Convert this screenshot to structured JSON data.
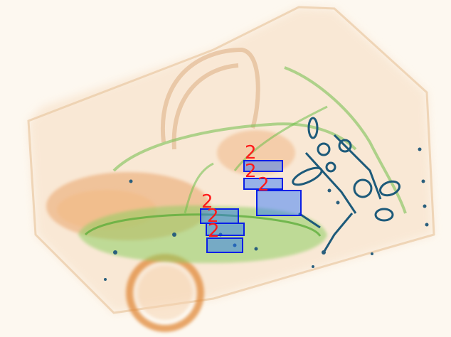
{
  "colors": {
    "background": "#fdf8f0",
    "box_stroke": "#0a1fe6",
    "box_fill": "#1f6fff",
    "label": "#ff1a1a",
    "organic": "#e8a060",
    "inorganic": "#6fbf4a",
    "metal": "#1d5a7a"
  },
  "detections": [
    {
      "label": "2"
    },
    {
      "label": "2"
    },
    {
      "label": "2"
    },
    {
      "label": "2"
    },
    {
      "label": "2"
    },
    {
      "label": "2"
    }
  ]
}
